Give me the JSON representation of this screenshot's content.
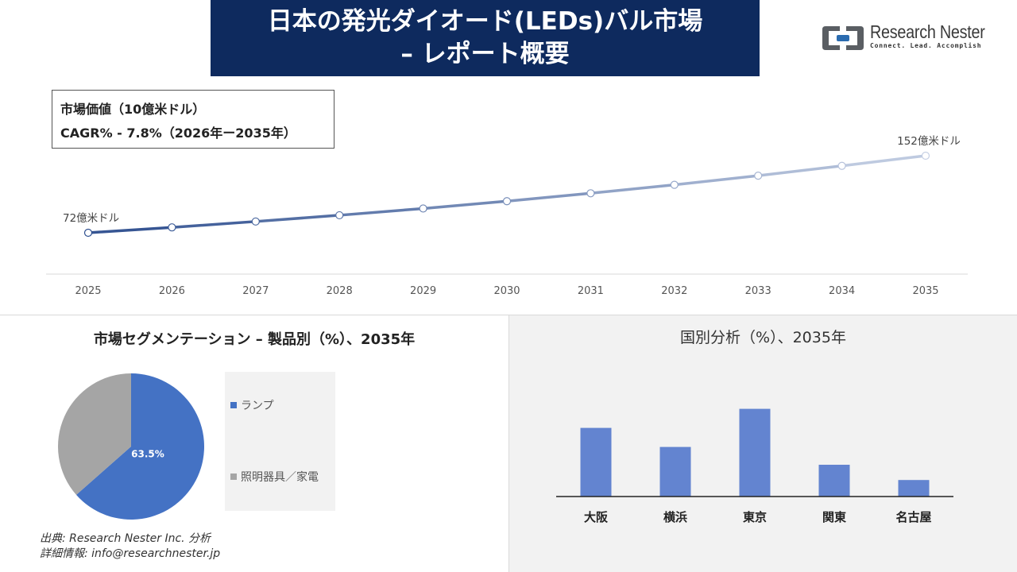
{
  "header": {
    "title_line1": "日本の発光ダイオード(LEDs)バル市場",
    "title_line2": "– レポート概要"
  },
  "logo": {
    "name": "Research Nester",
    "tagline": "Connect. Lead. Accomplish",
    "colors": {
      "frame": "#5a5e63",
      "accent": "#2b6cb0"
    }
  },
  "info_box": {
    "line1": "市場価値（10億米ドル）",
    "line2": "CAGR% - 7.8%（2026年ー2035年）"
  },
  "segment_panel": {
    "title": "市場セグメンテーション – 製品別（%）、2035年"
  },
  "region_panel": {
    "title": "国別分析（%）、2035年"
  },
  "source": {
    "line1": "出典: Research Nester Inc. 分析",
    "line2": "詳細情報: info@researchnester.jp"
  },
  "chart_data": [
    {
      "type": "line",
      "x": [
        "2025",
        "2026",
        "2027",
        "2028",
        "2029",
        "2030",
        "2031",
        "2032",
        "2033",
        "2034",
        "2035"
      ],
      "values": [
        7.2,
        7.76,
        8.37,
        9.02,
        9.72,
        10.48,
        11.3,
        12.18,
        13.13,
        14.15,
        15.2
      ],
      "annotations": [
        {
          "index": 0,
          "text": "72億米ドル"
        },
        {
          "index": 10,
          "text": "152億米ドル"
        }
      ],
      "colors": {
        "start": "#2e4f8f",
        "end": "#c6d0e4"
      },
      "grid": false
    },
    {
      "type": "pie",
      "slices": [
        {
          "label": "ランプ",
          "value": 63.5,
          "color": "#4472c4",
          "value_label": "63.5%"
        },
        {
          "label": "照明器具／家電",
          "value": 36.5,
          "color": "#a5a5a5"
        }
      ]
    },
    {
      "type": "bar",
      "categories": [
        "大阪",
        "横浜",
        "東京",
        "関東",
        "名古屋"
      ],
      "values": [
        27,
        19.5,
        34.5,
        12.5,
        6.5
      ],
      "color": "#6384d0",
      "ylim": [
        0,
        40
      ]
    }
  ]
}
